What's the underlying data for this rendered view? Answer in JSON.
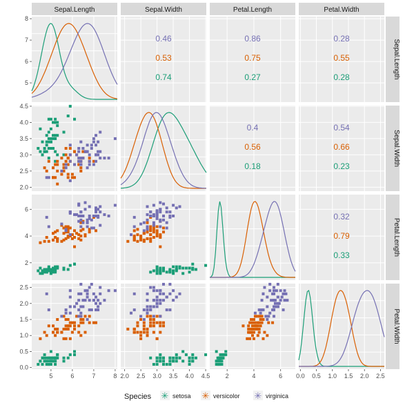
{
  "chart_data": {
    "type": "scatter",
    "variables": [
      "Sepal.Length",
      "Sepal.Width",
      "Petal.Length",
      "Petal.Width"
    ],
    "axis_ranges": {
      "Sepal.Length": [
        4.1,
        8.1
      ],
      "Sepal.Width": [
        1.88,
        4.52
      ],
      "Petal.Length": [
        0.7,
        7.1
      ],
      "Petal.Width": [
        -0.05,
        2.62
      ]
    },
    "x_tick_labels": [
      [
        "5",
        "6",
        "7",
        "8"
      ],
      [
        "2.0",
        "2.5",
        "3.0",
        "3.5",
        "4.0",
        "4.5"
      ],
      [
        "2",
        "4",
        "6"
      ],
      [
        "0.0",
        "0.5",
        "1.0",
        "1.5",
        "2.0",
        "2.5"
      ]
    ],
    "y_tick_labels": [
      [
        "5",
        "6",
        "7",
        "8"
      ],
      [
        "2.0",
        "2.5",
        "3.0",
        "3.5",
        "4.0",
        "4.5"
      ],
      [
        "2",
        "4",
        "6"
      ],
      [
        "0.0",
        "0.5",
        "1.0",
        "1.5",
        "2.0",
        "2.5"
      ]
    ],
    "species": [
      {
        "name": "setosa",
        "color": "#1b9e77",
        "mean": [
          5.006,
          3.428,
          1.462,
          0.246
        ],
        "sd": [
          0.352,
          0.379,
          0.174,
          0.105
        ]
      },
      {
        "name": "versicolor",
        "color": "#d95f02",
        "mean": [
          5.936,
          2.77,
          4.26,
          1.326
        ],
        "sd": [
          0.516,
          0.314,
          0.47,
          0.198
        ]
      },
      {
        "name": "virginica",
        "color": "#7570b3",
        "mean": [
          6.588,
          2.974,
          5.552,
          2.026
        ],
        "sd": [
          0.636,
          0.322,
          0.552,
          0.275
        ]
      }
    ],
    "correlations": [
      {
        "row": 0,
        "col": 1,
        "values": [
          "0.46",
          "0.53",
          "0.74"
        ]
      },
      {
        "row": 0,
        "col": 2,
        "values": [
          "0.86",
          "0.75",
          "0.27"
        ]
      },
      {
        "row": 0,
        "col": 3,
        "values": [
          "0.28",
          "0.55",
          "0.28"
        ]
      },
      {
        "row": 1,
        "col": 2,
        "values": [
          "0.4",
          "0.56",
          "0.18"
        ]
      },
      {
        "row": 1,
        "col": 3,
        "values": [
          "0.54",
          "0.66",
          "0.23"
        ]
      },
      {
        "row": 2,
        "col": 3,
        "values": [
          "0.32",
          "0.79",
          "0.33"
        ]
      }
    ],
    "correlation_order": [
      "virginica",
      "versicolor",
      "setosa"
    ],
    "legend_title": "Species",
    "legend_position": "bottom",
    "grid": true,
    "background": "#ebebeb"
  }
}
